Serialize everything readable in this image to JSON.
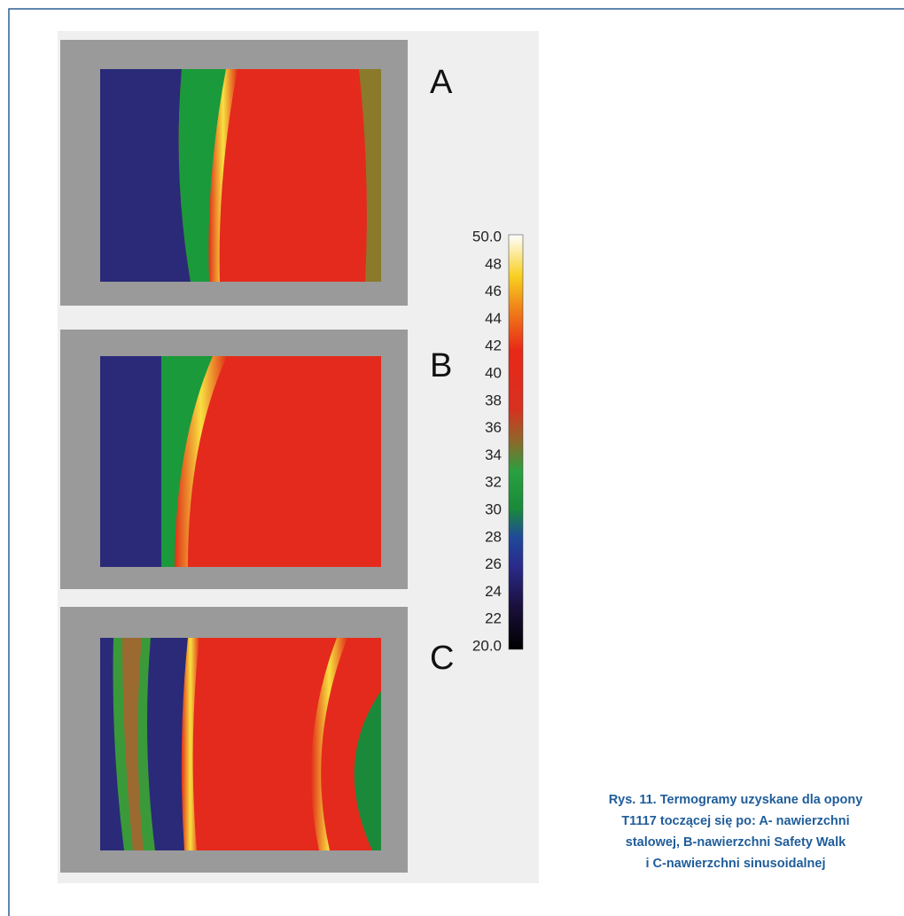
{
  "figure": {
    "panels": [
      "A",
      "B",
      "C"
    ],
    "colorbar": {
      "max": "50.0",
      "ticks": [
        "48",
        "46",
        "44",
        "42",
        "40",
        "38",
        "36",
        "34",
        "32",
        "30",
        "28",
        "26",
        "24",
        "22"
      ],
      "min": "20.0"
    },
    "caption": [
      "Rys. 11. Termogramy uzyskane dla opony",
      "T1117 toczącej się po: A- nawierzchni",
      "stalowej, B-nawierzchni Safety Walk",
      "i C-nawierzchni sinusoidalnej"
    ]
  }
}
